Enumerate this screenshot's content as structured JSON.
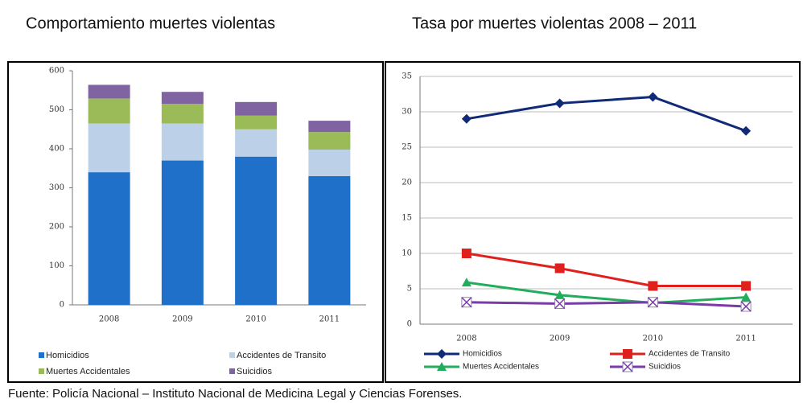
{
  "chart_data": [
    {
      "type": "bar",
      "stacked": true,
      "title": "Comportamiento muertes violentas",
      "categories": [
        "2008",
        "2009",
        "2010",
        "2011"
      ],
      "series": [
        {
          "name": "Homicidios",
          "color": "#1f70c8",
          "values": [
            340,
            370,
            380,
            330
          ]
        },
        {
          "name": "Accidentes de Transito",
          "color": "#bcd0e8",
          "values": [
            125,
            95,
            70,
            68
          ]
        },
        {
          "name": "Muertes Accidentales",
          "color": "#9bbb59",
          "values": [
            64,
            50,
            35,
            45
          ]
        },
        {
          "name": "Suicidios",
          "color": "#8064a2",
          "values": [
            35,
            31,
            35,
            29
          ]
        }
      ],
      "ylim": [
        0,
        600
      ],
      "yticks": [
        0,
        100,
        200,
        300,
        400,
        500,
        600
      ],
      "grid": false
    },
    {
      "type": "line",
      "title": "Tasa por muertes violentas 2008 – 2011",
      "categories": [
        "2008",
        "2009",
        "2010",
        "2011"
      ],
      "series": [
        {
          "name": "Homicidios",
          "color": "#102a78",
          "marker": "diamond",
          "values": [
            29,
            31.2,
            32.1,
            27.3
          ]
        },
        {
          "name": "Accidentes de Transito",
          "color": "#e0201c",
          "marker": "square",
          "values": [
            10,
            7.9,
            5.4,
            5.4
          ]
        },
        {
          "name": "Muertes Accidentales",
          "color": "#22ad5c",
          "marker": "triangle",
          "values": [
            5.9,
            4.1,
            3,
            3.8
          ]
        },
        {
          "name": "Suicidios",
          "color": "#7a3aa8",
          "marker": "x",
          "values": [
            3.1,
            2.9,
            3.1,
            2.5
          ]
        }
      ],
      "ylim": [
        0,
        35
      ],
      "yticks": [
        0,
        5,
        10,
        15,
        20,
        25,
        30,
        35
      ],
      "grid": true
    }
  ],
  "source": "Fuente: Policía Nacional – Instituto Nacional de Medicina Legal y  Ciencias Forenses."
}
